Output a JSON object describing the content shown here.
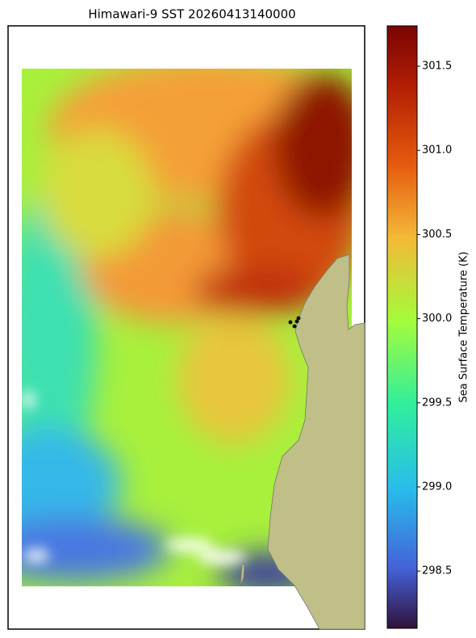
{
  "chart_data": {
    "type": "map",
    "title": "Himawari-9 SST 20260413140000",
    "colorbar_label": "Sea Surface Temperature (K)",
    "clim": [
      298.16,
      301.74
    ],
    "cticks": [
      298.5,
      {
        "value": 299,
        "label": "299.0"
      },
      299.5,
      {
        "value": 300,
        "label": "300.0"
      },
      300.5,
      {
        "value": 301,
        "label": "301.0"
      },
      301.5
    ]
  }
}
